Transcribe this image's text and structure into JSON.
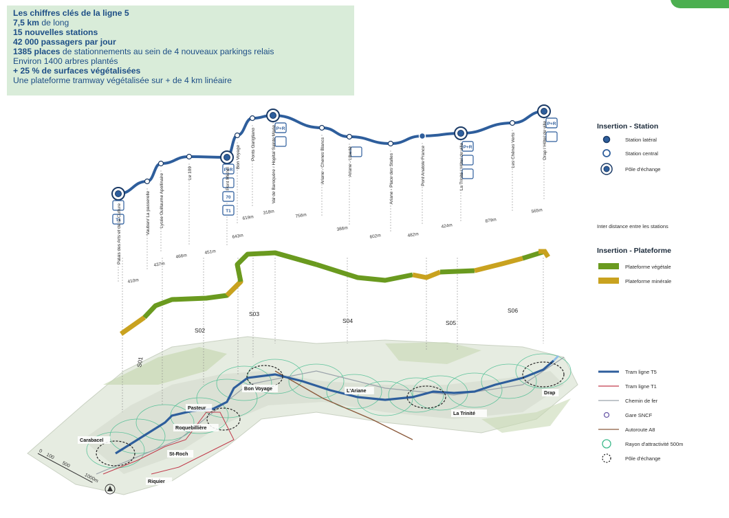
{
  "key_figures": {
    "title": "Les chiffres clés de la ligne 5",
    "lines": [
      {
        "bold": "7,5 km",
        "rest": " de long"
      },
      {
        "bold": "15 nouvelles stations",
        "rest": ""
      },
      {
        "bold": "42 000 passagers par jour",
        "rest": ""
      },
      {
        "bold": "1385 places",
        "rest": " de stationnements au sein de 4 nouveaux parkings relais"
      },
      {
        "bold": "",
        "rest": "Environ 1400 arbres plantés"
      },
      {
        "bold": "+ 25 % de surfaces végétalisées",
        "rest": ""
      },
      {
        "bold": "",
        "rest": "Une plateforme tramway végétalisée sur + de 4 km linéaire"
      }
    ]
  },
  "stations": [
    {
      "name": "Palais des Arts et de la Culture",
      "type": "exchange"
    },
    {
      "name": "Vauban/ La passerelle",
      "type": "central"
    },
    {
      "name": "Lycée Guillaume Apollinaire",
      "type": "central"
    },
    {
      "name": "Le 109",
      "type": "central"
    },
    {
      "name": "Pont Michel",
      "type": "exchange"
    },
    {
      "name": "Bon Voyage",
      "type": "central"
    },
    {
      "name": "Ponts Garigliano",
      "type": "central"
    },
    {
      "name": "Val de Baroquère - Hopital Sainte Marie",
      "type": "exchange"
    },
    {
      "name": "Ariane - Chenes Blancs",
      "type": "central"
    },
    {
      "name": "Ariane - Liberté",
      "type": "central"
    },
    {
      "name": "Ariane - Place des Stalles",
      "type": "central"
    },
    {
      "name": "Pont Anatole France",
      "type": "lateral"
    },
    {
      "name": "La Trinité / Hôtel de ville",
      "type": "exchange"
    },
    {
      "name": "Les Chênes Verts",
      "type": "central"
    },
    {
      "name": "Drap / Hôtel de ville",
      "type": "exchange"
    }
  ],
  "distances": [
    "410m",
    "437m",
    "466m",
    "451m",
    "643m",
    "619m",
    "318m",
    "756m",
    "386m",
    "602m",
    "482m",
    "424m",
    "879m",
    "565m"
  ],
  "sections": [
    "S01",
    "S02",
    "S03",
    "S04",
    "S05",
    "S06"
  ],
  "map_places": [
    "Carabacel",
    "Pasteur",
    "Roquebillière",
    "St-Roch",
    "Riquier",
    "Bon Voyage",
    "L'Ariane",
    "La Trinité",
    "Drap"
  ],
  "scale": {
    "ticks": [
      "0",
      "100",
      "500",
      "1000m"
    ]
  },
  "station_icons": {
    "pr": "P+R",
    "t1": "T1",
    "bus_line": "70"
  },
  "legend": {
    "station_title": "Insertion - Station",
    "lateral": "Station latéral",
    "central": "Station central",
    "exchange": "Pôle d'échange",
    "interdistance": "Inter distance entre les stations",
    "platform_title": "Insertion - Plateforme",
    "vegetal": "Plateforme végétale",
    "mineral": "Plateforme minérale",
    "map_items": [
      {
        "label": "Tram ligne T5",
        "symbol": "line-blue"
      },
      {
        "label": "Tram ligne T1",
        "symbol": "line-red"
      },
      {
        "label": "Chemin de fer",
        "symbol": "line-grey"
      },
      {
        "label": "Gare SNCF",
        "symbol": "circle-purple"
      },
      {
        "label": "Autoroute A8",
        "symbol": "line-brown"
      },
      {
        "label": "Rayon d'attractivité 500m",
        "symbol": "circle-green"
      },
      {
        "label": "Pôle d'échange",
        "symbol": "circle-dashed"
      }
    ]
  },
  "colors": {
    "line_blue": "#2e5e9c",
    "vegetal_green": "#6a9a1f",
    "mineral_gold": "#c9a21f",
    "keybox_bg": "#d9ecd9",
    "title_blue": "#1d4e86",
    "tram_t1_red": "#c0394a",
    "autoroute_brown": "#8b5a3c",
    "attractivity_green": "#3bb98a",
    "gare_purple": "#6b5aa8"
  }
}
